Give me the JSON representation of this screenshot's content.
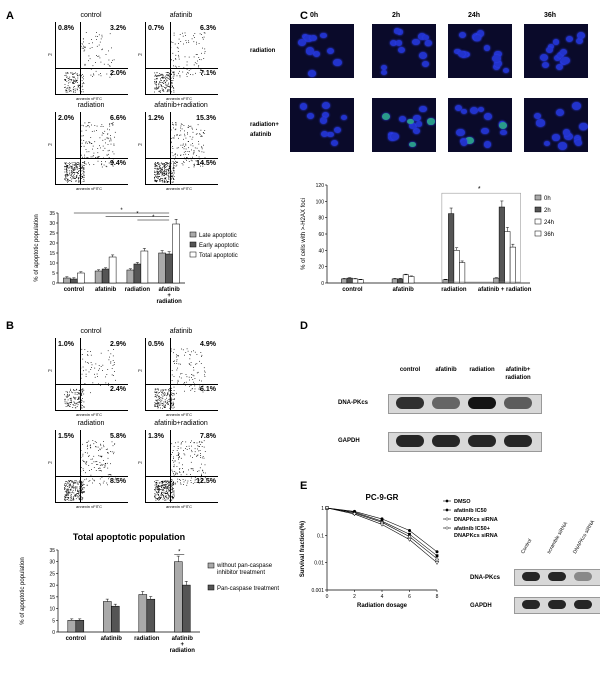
{
  "panels": {
    "A": {
      "letter": "A",
      "flow": [
        {
          "title": "control",
          "ul": "0.8%",
          "ur": "3.2%",
          "lr": "2.0%"
        },
        {
          "title": "afatinib",
          "ul": "0.7%",
          "ur": "6.3%",
          "lr": "7.1%"
        },
        {
          "title": "radiation",
          "ul": "2.0%",
          "ur": "6.6%",
          "lr": "9.4%"
        },
        {
          "title": "afatinib+radiation",
          "ul": "1.2%",
          "ur": "15.3%",
          "lr": "14.5%"
        }
      ],
      "axis_label": "annexin vFITC",
      "y_axis_label": "PI",
      "chart_data": {
        "type": "bar",
        "categories": [
          "control",
          "afatinib",
          "radiation",
          "afatinib\n+\nradiation"
        ],
        "series": [
          {
            "name": "Late apoptotic",
            "values": [
              2.5,
              6,
              6.5,
              15
            ],
            "color": "#aaaaaa"
          },
          {
            "name": "Early apoptotic",
            "values": [
              2,
              7,
              9.5,
              14.5
            ],
            "color": "#555555"
          },
          {
            "name": "Total apoptotic",
            "values": [
              5,
              13,
              16,
              29.5
            ],
            "color": "#ffffff"
          }
        ],
        "ylabel": "% of apoptotic population",
        "ylim": [
          0,
          35
        ],
        "annotations": [
          "*",
          "*",
          "*"
        ]
      }
    },
    "B": {
      "letter": "B",
      "flow": [
        {
          "title": "control",
          "ul": "1.0%",
          "ur": "2.9%",
          "lr": "2.4%"
        },
        {
          "title": "afatinib",
          "ul": "0.5%",
          "ur": "4.9%",
          "lr": "6.1%"
        },
        {
          "title": "radiation",
          "ul": "1.5%",
          "ur": "5.8%",
          "lr": "8.5%"
        },
        {
          "title": "afatinib+radiation",
          "ul": "1.3%",
          "ur": "7.8%",
          "lr": "12.5%"
        }
      ],
      "axis_label": "annexin vFITC",
      "y_axis_label": "PI",
      "chart_data": {
        "type": "bar",
        "title": "Total apoptotic population",
        "categories": [
          "control",
          "afatinib",
          "radiation",
          "afatinib\n+\nradiation"
        ],
        "series": [
          {
            "name": "without pan-caspase inhibitor treatment",
            "values": [
              5,
              13,
              16,
              30
            ],
            "color": "#aaaaaa"
          },
          {
            "name": "Pan-caspase treatment",
            "values": [
              5,
              11,
              14,
              20
            ],
            "color": "#555555"
          }
        ],
        "ylabel": "% of apoptotic population",
        "ylim": [
          0,
          35
        ],
        "yticks": [
          0,
          5,
          10,
          15,
          20,
          25,
          30,
          35
        ],
        "annotations": [
          "*"
        ]
      }
    },
    "C": {
      "letter": "C",
      "timepoints": [
        "0h",
        "2h",
        "24h",
        "36h"
      ],
      "rows": [
        "radiation",
        "radiation+\nafatinib"
      ],
      "chart_data": {
        "type": "bar",
        "categories": [
          "control",
          "afatinib",
          "radiation",
          "afatinib + radiation"
        ],
        "series": [
          {
            "name": "0h",
            "values": [
              5,
              5,
              4,
              6
            ],
            "color": "#aaaaaa"
          },
          {
            "name": "2h",
            "values": [
              6,
              5,
              85,
              93
            ],
            "color": "#555555"
          },
          {
            "name": "24h",
            "values": [
              5,
              10,
              40,
              63
            ],
            "color": "#ffffff"
          },
          {
            "name": "36h",
            "values": [
              4,
              8,
              25,
              44
            ],
            "color": "#ffffff"
          }
        ],
        "ylabel": "% of cells with >-H2AX foci",
        "ylim": [
          0,
          120
        ],
        "yticks": [
          0,
          20,
          40,
          60,
          80,
          100,
          120
        ],
        "annotations": [
          "*"
        ]
      }
    },
    "D": {
      "letter": "D",
      "lanes": [
        "control",
        "afatinib",
        "radiation",
        "afatinib+\nradiation"
      ],
      "bands": [
        {
          "label": "DNA-PKcs",
          "intensities": [
            0.85,
            0.55,
            1.0,
            0.6
          ]
        },
        {
          "label": "GAPDH",
          "intensities": [
            0.9,
            0.9,
            0.9,
            0.9
          ]
        }
      ]
    },
    "E": {
      "letter": "E",
      "chart_data": {
        "type": "line",
        "title": "PC-9-GR",
        "x": [
          0,
          2,
          4,
          6,
          8
        ],
        "series": [
          {
            "name": "DMSO",
            "values": [
              1,
              0.75,
              0.4,
              0.15,
              0.025
            ]
          },
          {
            "name": "afatinib IC50",
            "values": [
              1,
              0.7,
              0.33,
              0.11,
              0.018
            ]
          },
          {
            "name": "DNAPKcs siRNA",
            "values": [
              1,
              0.65,
              0.3,
              0.09,
              0.014
            ]
          },
          {
            "name": "afatinib IC50+\nDNAPKcs siRNA",
            "values": [
              1,
              0.6,
              0.25,
              0.07,
              0.01
            ]
          }
        ],
        "xlabel": "Radiation dosage",
        "ylabel": "Survival fraction(%)",
        "xlim": [
          0,
          8
        ],
        "xticks": [
          0,
          2,
          4,
          6,
          8
        ],
        "yscale": "log",
        "yticks": [
          "1",
          "0.1",
          "0.01",
          "0.001"
        ]
      },
      "blot": {
        "lanes": [
          "Control",
          "scramble siRNA",
          "DNAPKcs siRNA"
        ],
        "bands": [
          {
            "label": "DNA-PKcs",
            "intensities": [
              0.9,
              0.9,
              0.35
            ]
          },
          {
            "label": "GAPDH",
            "intensities": [
              0.9,
              0.9,
              0.9
            ]
          }
        ]
      }
    }
  }
}
